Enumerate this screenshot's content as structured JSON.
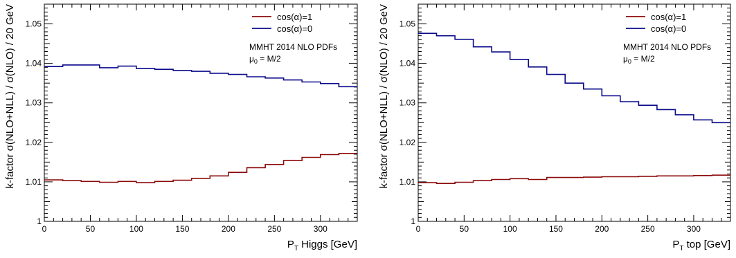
{
  "chart_data": [
    {
      "type": "line",
      "step": true,
      "xlabel": "P",
      "xlabel_sub": "T",
      "xlabel_rest": " Higgs [GeV]",
      "ylabel": "k-factor σ(NLO+NLL) / σ(NLO) / 20 GeV",
      "xlim": [
        0,
        340
      ],
      "ylim": [
        1.0,
        1.055
      ],
      "xticks": [
        0,
        50,
        100,
        150,
        200,
        250,
        300
      ],
      "yticks": [
        1,
        1.01,
        1.02,
        1.03,
        1.04,
        1.05
      ],
      "ytick_labels": [
        "1",
        "1.01",
        "1.02",
        "1.03",
        "1.04",
        "1.05"
      ],
      "bin_edges": [
        0,
        20,
        40,
        60,
        80,
        100,
        120,
        140,
        160,
        180,
        200,
        220,
        240,
        260,
        280,
        300,
        320,
        340
      ],
      "series": [
        {
          "name": "cos(α)=1",
          "color": "#8b0a0a",
          "values": [
            1.0105,
            1.0103,
            1.0101,
            1.0099,
            1.0101,
            1.0098,
            1.0101,
            1.0104,
            1.0109,
            1.0115,
            1.0124,
            1.0136,
            1.0144,
            1.0154,
            1.0162,
            1.0169,
            1.0172
          ]
        },
        {
          "name": "cos(α)=0",
          "color": "#0a0a8b",
          "values": [
            1.0392,
            1.0396,
            1.0396,
            1.0389,
            1.0393,
            1.0387,
            1.0385,
            1.0382,
            1.038,
            1.0375,
            1.0372,
            1.0366,
            1.0363,
            1.0358,
            1.0353,
            1.0349,
            1.0341
          ]
        }
      ],
      "annotation_line1": "MMHT 2014 NLO PDFs",
      "annotation_line2_mu": "μ",
      "annotation_line2_sub": "0",
      "annotation_line2_rest": " = M/2",
      "legend_placement": "top-right",
      "grid": false
    },
    {
      "type": "line",
      "step": true,
      "xlabel": "P",
      "xlabel_sub": "T",
      "xlabel_rest": " top [GeV]",
      "ylabel": "k-factor σ(NLO+NLL) / σ(NLO) / 20 GeV",
      "xlim": [
        0,
        340
      ],
      "ylim": [
        1.0,
        1.055
      ],
      "xticks": [
        0,
        50,
        100,
        150,
        200,
        250,
        300
      ],
      "yticks": [
        1,
        1.01,
        1.02,
        1.03,
        1.04,
        1.05
      ],
      "ytick_labels": [
        "1",
        "1.01",
        "1.02",
        "1.03",
        "1.04",
        "1.05"
      ],
      "bin_edges": [
        0,
        20,
        40,
        60,
        80,
        100,
        120,
        140,
        160,
        180,
        200,
        220,
        240,
        260,
        280,
        300,
        320,
        340
      ],
      "series": [
        {
          "name": "cos(α)=1",
          "color": "#8b0a0a",
          "values": [
            1.0098,
            1.0096,
            1.0099,
            1.0103,
            1.0106,
            1.0108,
            1.0106,
            1.0111,
            1.0111,
            1.0112,
            1.0113,
            1.0113,
            1.0114,
            1.0115,
            1.0115,
            1.0116,
            1.0117
          ]
        },
        {
          "name": "cos(α)=0",
          "color": "#0a0a8b",
          "values": [
            1.0476,
            1.047,
            1.0461,
            1.0442,
            1.0429,
            1.041,
            1.0391,
            1.0372,
            1.035,
            1.0335,
            1.0318,
            1.0303,
            1.0294,
            1.0283,
            1.027,
            1.0257,
            1.025
          ]
        }
      ],
      "annotation_line1": "MMHT 2014 NLO PDFs",
      "annotation_line2_mu": "μ",
      "annotation_line2_sub": "0",
      "annotation_line2_rest": " = M/2",
      "legend_placement": "top-right",
      "grid": false
    }
  ]
}
